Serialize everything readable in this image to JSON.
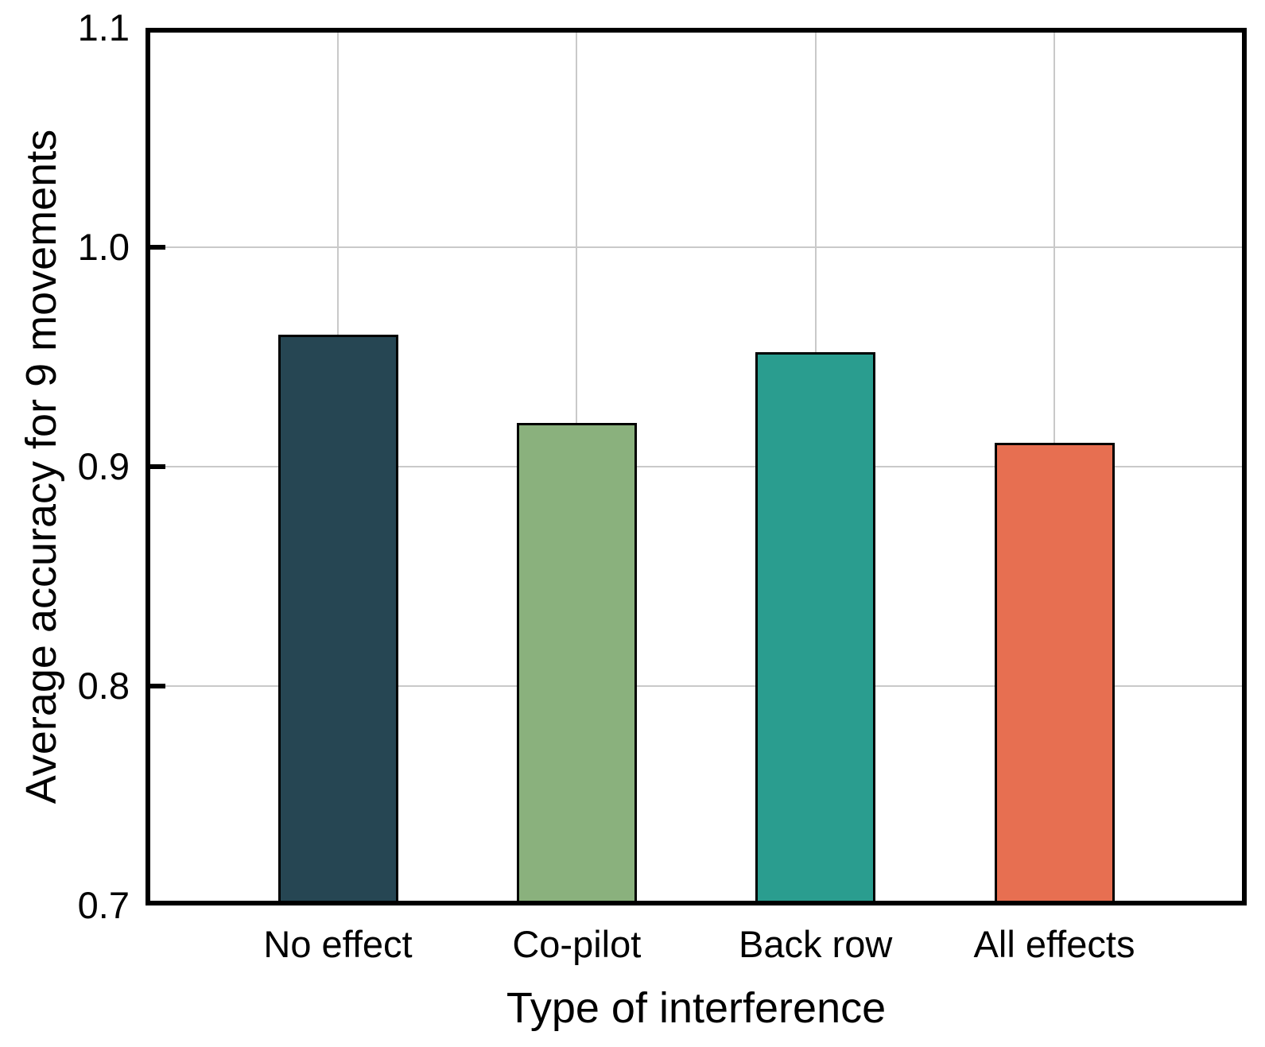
{
  "figure": {
    "background": "#ffffff",
    "frame_color": "#000000",
    "grid_color": "#c9c9c9",
    "text_color": "#000000"
  },
  "chart_data": {
    "type": "bar",
    "title": "",
    "xlabel": "Type of interference",
    "ylabel": "Average accuracy for 9 movements",
    "categories": [
      "No effect",
      "Co-pilot",
      "Back row",
      "All effects"
    ],
    "values": [
      0.96,
      0.92,
      0.952,
      0.911
    ],
    "bar_colors": [
      "#264653",
      "#8ab17d",
      "#2a9d8f",
      "#e76f51"
    ],
    "bar_edge_color": "#000000",
    "ylim": [
      0.7,
      1.1
    ],
    "yticks": [
      0.7,
      0.8,
      0.9,
      1.0,
      1.1
    ],
    "ytick_labels": [
      "0.7",
      "0.8",
      "0.9",
      "1.0",
      "1.1"
    ],
    "gridline_values": [
      0.8,
      0.9,
      1.0
    ],
    "grid": true,
    "legend_position": "none"
  }
}
